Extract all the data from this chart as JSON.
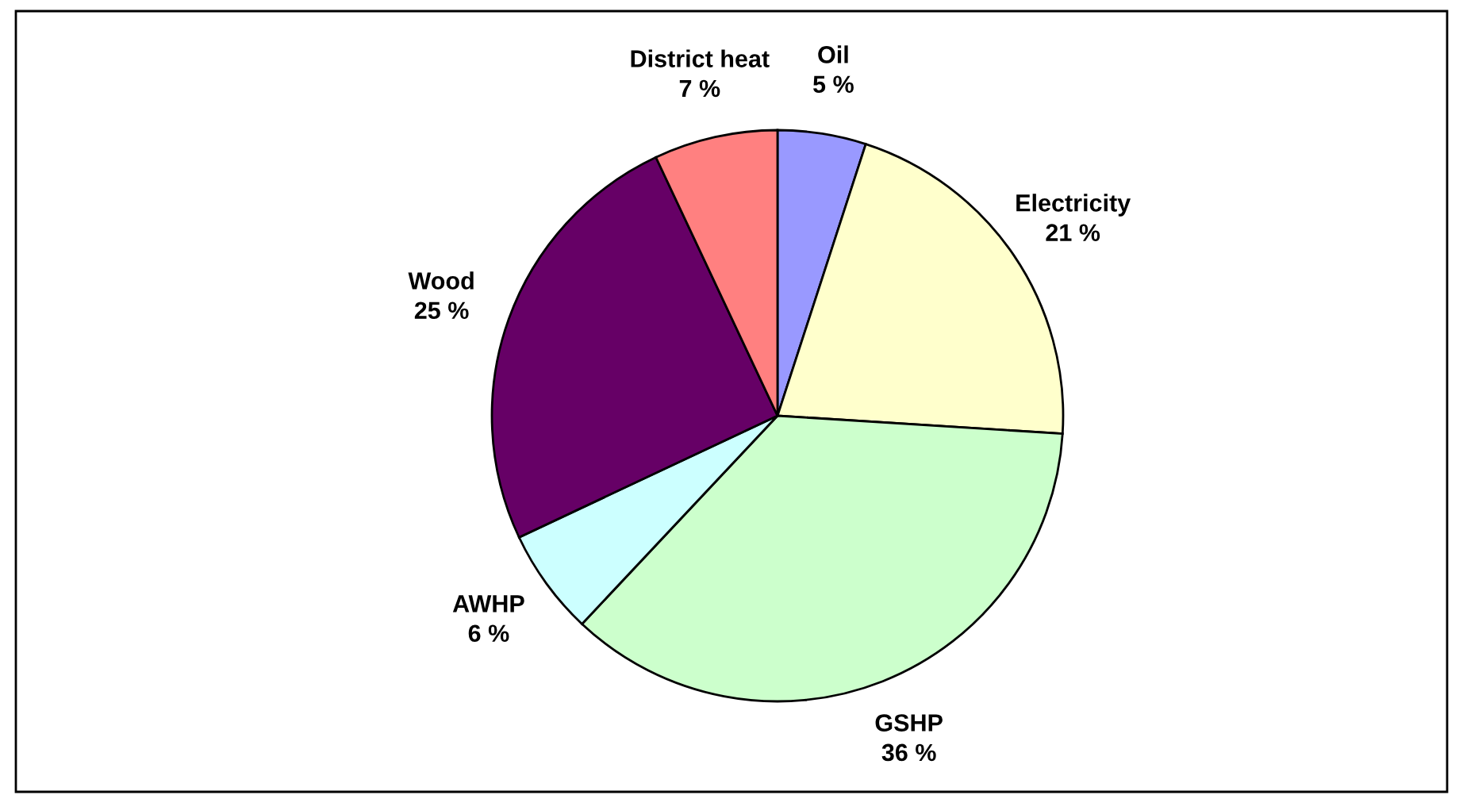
{
  "chart_data": {
    "type": "pie",
    "categories": [
      "Oil",
      "Electricity",
      "GSHP",
      "AWHP",
      "Wood",
      "District heat"
    ],
    "values": [
      5,
      21,
      36,
      6,
      25,
      7
    ],
    "value_labels": [
      "5 %",
      "21 %",
      "36 %",
      "6 %",
      "25 %",
      "7 %"
    ],
    "colors": [
      "#9999ff",
      "#ffffcc",
      "#ccffcc",
      "#ccffff",
      "#660066",
      "#ff8080"
    ],
    "legend": false
  }
}
